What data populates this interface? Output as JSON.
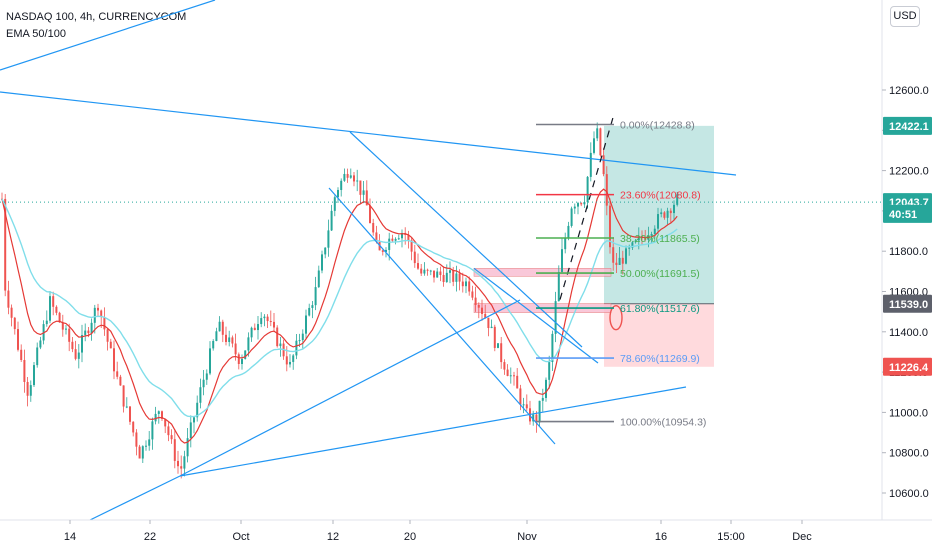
{
  "header": {
    "symbol_line": "NASDAQ 100, 4h, CURRENCYCOM",
    "indicator_line": "EMA 50/100",
    "currency_button": "USD"
  },
  "colors": {
    "candle_up": "#26a69a",
    "candle_down": "#ef5350",
    "ema50": "#e53935",
    "ema100": "#80deea",
    "trendline": "#2196f3",
    "fib_0": "#787b86",
    "fib_236": "#f23645",
    "fib_382": "#4caf50",
    "fib_50": "#4caf50",
    "fib_618": "#089981",
    "fib_786": "#5b9cf6",
    "fib_100": "#787b86",
    "long_profit_zone": "#b2dfdb",
    "long_loss_zone": "#ffcdd2"
  },
  "chart_data": {
    "type": "candlestick",
    "title": "NASDAQ 100, 4h, CURRENCYCOM",
    "indicators": [
      "EMA 50/100"
    ],
    "y_axis": {
      "ticks": [
        "12600.0",
        "12400.0",
        "12200.0",
        "12000.0",
        "11800.0",
        "11600.0",
        "11400.0",
        "11200.0",
        "11000.0",
        "10800.0",
        "10600.0"
      ],
      "ylim": [
        10500,
        12780
      ],
      "currency": "USD"
    },
    "x_axis": {
      "ticks": [
        "14",
        "22",
        "Oct",
        "12",
        "20",
        "Nov",
        "16",
        "15:00",
        "Dec"
      ]
    },
    "price_labels": [
      {
        "text": "12422.1",
        "value": 12422.1,
        "style": "teal"
      },
      {
        "text": "12043.7",
        "value": 12043.7,
        "style": "teal"
      },
      {
        "text": "40:51",
        "value": 11985,
        "style": "teal"
      },
      {
        "text": "11539.0",
        "value": 11539.0,
        "style": "gray"
      },
      {
        "text": "11226.4",
        "value": 11226.4,
        "style": "red"
      }
    ],
    "last_price": 12043.7,
    "fibonacci_levels": [
      {
        "label": "0.00%(12428.8)",
        "value": 12428.8,
        "color_key": "fib_0"
      },
      {
        "label": "23.60%(12080.8)",
        "value": 12080.8,
        "color_key": "fib_236"
      },
      {
        "label": "38.20%(11865.5)",
        "value": 11865.5,
        "color_key": "fib_382"
      },
      {
        "label": "50.00%(11691.5)",
        "value": 11691.5,
        "color_key": "fib_50"
      },
      {
        "label": "61.80%(11517.6)",
        "value": 11517.6,
        "color_key": "fib_618"
      },
      {
        "label": "78.60%(11269.9)",
        "value": 11269.9,
        "color_key": "fib_786"
      },
      {
        "label": "100.00%(10954.3)",
        "value": 10954.3,
        "color_key": "fib_100"
      }
    ],
    "long_position": {
      "entry": 11539.0,
      "target": 12422.1,
      "stop": 11226.4
    }
  }
}
